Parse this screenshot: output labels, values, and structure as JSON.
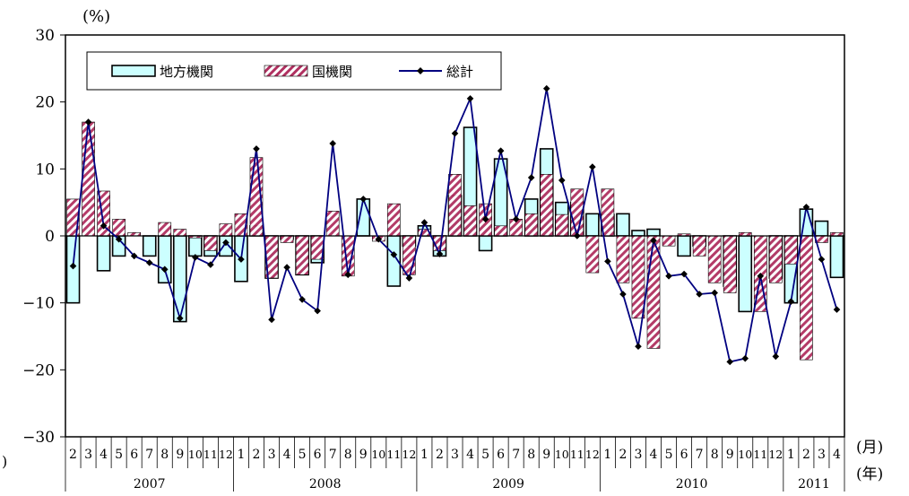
{
  "chart_data": {
    "type": "bar",
    "ylabel": "(%)",
    "ylim": [
      -30,
      30
    ],
    "y_ticks": [
      "30",
      "20",
      "10",
      "0",
      "−10",
      "−20",
      "−30"
    ],
    "month_axis_label": "(月)",
    "year_axis_label": "(年)",
    "left_fragment": ")",
    "months": [
      "2",
      "3",
      "4",
      "5",
      "6",
      "7",
      "8",
      "9",
      "10",
      "11",
      "12",
      "1",
      "2",
      "3",
      "4",
      "5",
      "6",
      "7",
      "8",
      "9",
      "10",
      "11",
      "12",
      "1",
      "2",
      "3",
      "4",
      "5",
      "6",
      "7",
      "8",
      "9",
      "10",
      "11",
      "12",
      "1",
      "2",
      "3",
      "4",
      "5",
      "6",
      "7",
      "8",
      "9",
      "10",
      "11",
      "12",
      "1",
      "2",
      "3",
      "4"
    ],
    "years": [
      {
        "label": "2007",
        "count": 11
      },
      {
        "label": "2008",
        "count": 12
      },
      {
        "label": "2009",
        "count": 12
      },
      {
        "label": "2010",
        "count": 12
      },
      {
        "label": "2011",
        "count": 4
      }
    ],
    "legend": [
      {
        "label": "地方機関",
        "kind": "local"
      },
      {
        "label": "国機関",
        "kind": "national"
      },
      {
        "label": "総計",
        "kind": "total"
      }
    ],
    "colors": {
      "local_fill": "#ccffff",
      "national_stripe": "#b03060",
      "total_line": "#000080",
      "total_marker": "#000000"
    },
    "series": [
      {
        "name": "地方機関",
        "values": [
          -10,
          0,
          -5.2,
          -3,
          0,
          -3,
          -7,
          -12.8,
          -3,
          -3,
          -3,
          -6.8,
          1.5,
          -6.3,
          -0.5,
          -5.8,
          -4,
          0,
          0,
          5.5,
          0,
          -7.5,
          -1.5,
          1.5,
          -3,
          6,
          16.2,
          -2.2,
          11.5,
          0,
          5.5,
          13,
          5,
          5,
          3.3,
          3.2,
          3.3,
          0.8,
          1,
          0,
          -3,
          -1.5,
          0,
          -7.5,
          -11.3,
          0,
          -6.3,
          -10,
          4,
          2.2,
          -6.2
        ]
      },
      {
        "name": "国機関",
        "values": [
          5.5,
          17,
          6.7,
          2.5,
          0.5,
          0,
          2,
          1,
          -0.3,
          -2.2,
          1.8,
          3.3,
          11.7,
          -6.3,
          -1,
          -5.8,
          -3.5,
          3.7,
          -6,
          0,
          -0.8,
          4.8,
          -5.8,
          1,
          -2.2,
          9.2,
          4.5,
          4.8,
          1.5,
          2.5,
          3.3,
          9.2,
          3.2,
          7,
          -5.5,
          7,
          -7,
          -12.3,
          -16.8,
          -1.5,
          0.3,
          -3,
          -7,
          -8.5,
          0.5,
          -11.3,
          -7,
          -4.2,
          -18.5,
          -1,
          0.5
        ]
      },
      {
        "name": "総計",
        "values": [
          -4.5,
          17,
          1.5,
          -0.5,
          -3,
          -4,
          -5,
          -12.3,
          -3.2,
          -4.3,
          -1,
          -3.5,
          13,
          -12.5,
          -4.7,
          -9.5,
          -11.2,
          13.8,
          -5.8,
          5.5,
          -0.5,
          -2.8,
          -6.3,
          2,
          -2.7,
          15.3,
          20.5,
          2.5,
          12.7,
          2.5,
          8.7,
          22,
          8.3,
          0,
          10.3,
          -3.8,
          -8.7,
          -16.5,
          -0.7,
          -6,
          -5.7,
          -8.7,
          -8.5,
          -18.8,
          -18.3,
          -6,
          -18,
          -9.8,
          4.3,
          -3.5,
          -11
        ]
      }
    ]
  }
}
